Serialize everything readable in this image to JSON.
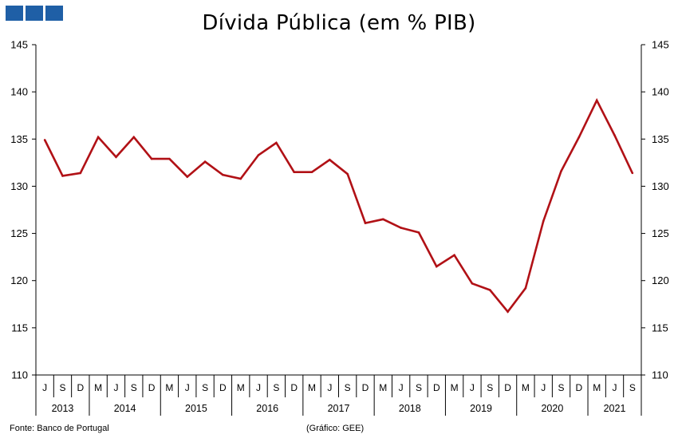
{
  "chart_data": {
    "type": "line",
    "title": "Dívida Pública (em % PIB)",
    "ylim": [
      110,
      145
    ],
    "y_ticks": [
      "110",
      "115",
      "120",
      "125",
      "130",
      "135",
      "140",
      "145"
    ],
    "grid": false,
    "months": [
      "J",
      "S",
      "D",
      "M",
      "J",
      "S",
      "D",
      "M",
      "J",
      "S",
      "D",
      "M",
      "J",
      "S",
      "D",
      "M",
      "J",
      "S",
      "D",
      "M",
      "J",
      "S",
      "D",
      "M",
      "J",
      "S",
      "D",
      "M",
      "J",
      "S",
      "D",
      "M",
      "J",
      "S"
    ],
    "years": [
      {
        "label": "2013",
        "count": 3
      },
      {
        "label": "2014",
        "count": 4
      },
      {
        "label": "2015",
        "count": 4
      },
      {
        "label": "2016",
        "count": 4
      },
      {
        "label": "2017",
        "count": 4
      },
      {
        "label": "2018",
        "count": 4
      },
      {
        "label": "2019",
        "count": 4
      },
      {
        "label": "2020",
        "count": 4
      },
      {
        "label": "2021",
        "count": 3
      }
    ],
    "series": [
      {
        "color": "#b11116",
        "values": [
          134.9,
          131.1,
          131.4,
          135.2,
          133.1,
          135.2,
          132.9,
          132.9,
          131.0,
          132.6,
          131.2,
          130.8,
          133.3,
          134.6,
          131.5,
          131.5,
          132.8,
          131.3,
          126.1,
          126.5,
          125.6,
          125.1,
          121.5,
          122.7,
          119.7,
          119.0,
          116.7,
          119.2,
          126.3,
          131.6,
          135.2,
          139.1,
          135.4,
          131.4
        ]
      }
    ]
  },
  "logo": {
    "color": "#1f5fa6"
  },
  "footer": {
    "source": "Fonte: Banco de Portugal",
    "credit": "(Gráfico: GEE)"
  }
}
